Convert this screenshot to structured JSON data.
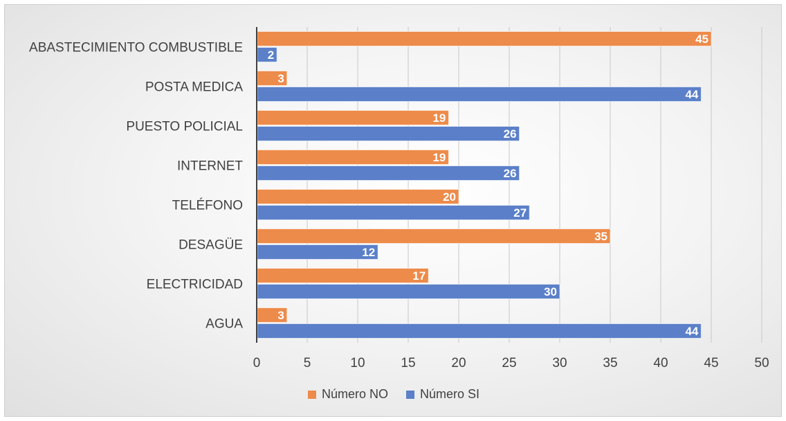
{
  "chart_data": {
    "type": "bar",
    "orientation": "horizontal",
    "categories": [
      "ABASTECIMIENTO COMBUSTIBLE",
      "POSTA MEDICA",
      "PUESTO POLICIAL",
      "INTERNET",
      "TELÉFONO",
      "DESAGÜE",
      "ELECTRICIDAD",
      "AGUA"
    ],
    "series": [
      {
        "name": "Número NO",
        "color": "#ED8B4A",
        "values": [
          45,
          3,
          19,
          19,
          20,
          35,
          17,
          3
        ]
      },
      {
        "name": "Número SI",
        "color": "#5B80C9",
        "values": [
          2,
          44,
          26,
          26,
          27,
          12,
          30,
          44
        ]
      }
    ],
    "xlim": [
      0,
      50
    ],
    "xticks": [
      0,
      5,
      10,
      15,
      20,
      25,
      30,
      35,
      40,
      45,
      50
    ],
    "grid": true,
    "data_labels": true,
    "legend_position": "bottom"
  }
}
